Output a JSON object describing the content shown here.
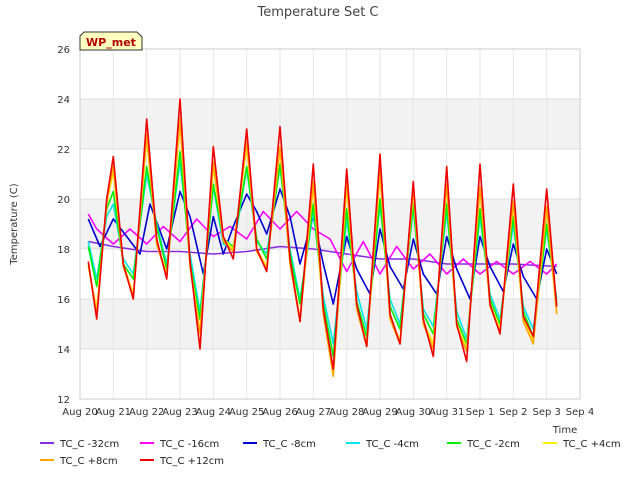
{
  "chart_data": {
    "type": "line",
    "title": "Temperature Set C",
    "xlabel": "Time",
    "ylabel": "Temperature (C)",
    "badge": "WP_met",
    "ylim": [
      12,
      26
    ],
    "yticks": [
      12,
      14,
      16,
      18,
      20,
      22,
      24,
      26
    ],
    "xlim": [
      0,
      15
    ],
    "xtick_labels": [
      "Aug 20",
      "Aug 21",
      "Aug 22",
      "Aug 23",
      "Aug 24",
      "Aug 25",
      "Aug 26",
      "Aug 27",
      "Aug 28",
      "Aug 29",
      "Aug 30",
      "Aug 31",
      "Sep 1",
      "Sep 2",
      "Sep 3",
      "Sep 4"
    ],
    "bands": [
      [
        14,
        16
      ],
      [
        18,
        20
      ],
      [
        22,
        24
      ]
    ],
    "grid": true,
    "legend_position": "bottom",
    "series": [
      {
        "name": "TC_C -32cm",
        "color": "#8a2be2",
        "x": [
          0.25,
          1,
          2,
          3,
          4,
          5,
          6,
          7,
          8,
          9,
          10,
          11,
          12,
          13,
          14.3
        ],
        "y": [
          18.3,
          18.1,
          17.9,
          17.9,
          17.8,
          17.9,
          18.1,
          18.0,
          17.8,
          17.6,
          17.6,
          17.4,
          17.4,
          17.4,
          17.3
        ]
      },
      {
        "name": "TC_C -16cm",
        "color": "#ff00ff",
        "x": [
          0.25,
          0.5,
          1,
          1.5,
          2,
          2.5,
          3,
          3.5,
          4,
          4.5,
          5,
          5.5,
          6,
          6.5,
          7,
          7.5,
          8,
          8.5,
          9,
          9.5,
          10,
          10.5,
          11,
          11.5,
          12,
          12.5,
          13,
          13.5,
          14,
          14.3
        ],
        "y": [
          19.4,
          18.8,
          18.2,
          18.8,
          18.2,
          18.9,
          18.3,
          19.2,
          18.5,
          18.9,
          18.4,
          19.5,
          18.8,
          19.5,
          18.8,
          18.4,
          17.1,
          18.3,
          17.0,
          18.1,
          17.2,
          17.8,
          17.0,
          17.6,
          17.0,
          17.5,
          17.0,
          17.5,
          17.0,
          17.4
        ]
      },
      {
        "name": "TC_C -8cm",
        "color": "#0000cc",
        "x": [
          0.25,
          0.6,
          1,
          1.4,
          1.8,
          2.1,
          2.6,
          3.0,
          3.3,
          3.7,
          4.0,
          4.3,
          4.6,
          5.0,
          5.3,
          5.6,
          6.0,
          6.3,
          6.6,
          7.0,
          7.3,
          7.6,
          8.0,
          8.3,
          8.7,
          9.0,
          9.3,
          9.7,
          10.0,
          10.3,
          10.7,
          11.0,
          11.3,
          11.7,
          12.0,
          12.3,
          12.7,
          13.0,
          13.3,
          13.7,
          14.0,
          14.3
        ],
        "y": [
          19.2,
          18.1,
          19.2,
          18.5,
          17.8,
          19.8,
          18.0,
          20.3,
          19.3,
          17.0,
          19.3,
          17.8,
          18.9,
          20.2,
          19.5,
          18.6,
          20.4,
          19.3,
          17.4,
          19.3,
          17.4,
          15.8,
          18.5,
          17.2,
          16.2,
          18.8,
          17.3,
          16.4,
          18.4,
          17.0,
          16.2,
          18.5,
          17.2,
          16.0,
          18.5,
          17.3,
          16.3,
          18.2,
          16.9,
          16.0,
          18.0,
          17.0
        ]
      },
      {
        "name": "TC_C -4cm",
        "color": "#00e5e5",
        "x": [
          0.25,
          0.5,
          0.8,
          1.0,
          1.3,
          1.6,
          2.0,
          2.3,
          2.6,
          3.0,
          3.3,
          3.6,
          4.0,
          4.3,
          4.6,
          5.0,
          5.3,
          5.6,
          6.0,
          6.3,
          6.6,
          7.0,
          7.3,
          7.6,
          8.0,
          8.3,
          8.6,
          9.0,
          9.3,
          9.6,
          10.0,
          10.3,
          10.6,
          11.0,
          11.3,
          11.6,
          12.0,
          12.3,
          12.6,
          13.0,
          13.3,
          13.6,
          14.0,
          14.3
        ],
        "y": [
          18.3,
          16.8,
          19.3,
          19.8,
          17.6,
          17.0,
          21.0,
          19.0,
          17.4,
          21.5,
          17.8,
          15.5,
          20.5,
          18.2,
          18.0,
          21.2,
          18.3,
          17.8,
          21.3,
          18.0,
          16.0,
          19.5,
          16.1,
          14.2,
          19.2,
          16.3,
          14.8,
          19.8,
          16.0,
          15.0,
          19.6,
          15.6,
          14.9,
          19.5,
          15.5,
          14.4,
          19.3,
          16.2,
          15.2,
          19.0,
          15.7,
          14.8,
          18.8,
          16.0
        ]
      },
      {
        "name": "TC_C -2cm",
        "color": "#00ee00",
        "x": [
          0.25,
          0.5,
          0.8,
          1.0,
          1.3,
          1.6,
          2.0,
          2.3,
          2.6,
          3.0,
          3.3,
          3.6,
          4.0,
          4.3,
          4.6,
          5.0,
          5.3,
          5.6,
          6.0,
          6.3,
          6.6,
          7.0,
          7.3,
          7.6,
          8.0,
          8.3,
          8.6,
          9.0,
          9.3,
          9.6,
          10.0,
          10.3,
          10.6,
          11.0,
          11.3,
          11.6,
          12.0,
          12.3,
          12.6,
          13.0,
          13.3,
          13.6,
          14.0,
          14.3
        ],
        "y": [
          18.1,
          16.5,
          19.6,
          20.3,
          17.4,
          16.8,
          21.3,
          18.9,
          17.2,
          21.9,
          17.5,
          15.2,
          20.6,
          18.4,
          18.1,
          21.3,
          18.4,
          17.6,
          21.4,
          17.8,
          15.8,
          19.8,
          15.8,
          13.7,
          19.6,
          15.9,
          14.5,
          20.0,
          15.7,
          14.8,
          19.8,
          15.4,
          14.6,
          19.8,
          15.2,
          14.2,
          19.6,
          16.0,
          15.0,
          19.3,
          15.5,
          14.5,
          19.0,
          15.8
        ]
      },
      {
        "name": "TC_C +4cm",
        "color": "#ffee00",
        "x": [
          0.25,
          0.5,
          0.8,
          1.0,
          1.3,
          1.6,
          2.0,
          2.3,
          2.6,
          3.0,
          3.3,
          3.6,
          4.0,
          4.3,
          4.6,
          5.0,
          5.3,
          5.6,
          6.0,
          6.3,
          6.6,
          7.0,
          7.3,
          7.6,
          8.0,
          8.3,
          8.6,
          9.0,
          9.3,
          9.6,
          10.0,
          10.3,
          10.6,
          11.0,
          11.3,
          11.6,
          12.0,
          12.3,
          12.6,
          13.0,
          13.3,
          13.6,
          14.0,
          14.3
        ],
        "y": [
          17.3,
          15.6,
          19.8,
          21.1,
          17.4,
          16.2,
          22.4,
          18.3,
          17.0,
          23.0,
          17.4,
          14.7,
          21.3,
          18.4,
          18.0,
          22.1,
          18.0,
          17.3,
          22.0,
          17.5,
          15.2,
          20.5,
          15.5,
          13.0,
          20.5,
          15.7,
          14.2,
          21.0,
          15.3,
          14.3,
          20.3,
          15.1,
          14.2,
          20.5,
          15.0,
          14.0,
          20.4,
          15.8,
          14.8,
          19.8,
          15.2,
          14.3,
          19.6,
          15.5
        ]
      },
      {
        "name": "TC_C +8cm",
        "color": "#ffa500",
        "x": [
          0.25,
          0.5,
          0.8,
          1.0,
          1.3,
          1.6,
          2.0,
          2.3,
          2.6,
          3.0,
          3.3,
          3.6,
          4.0,
          4.3,
          4.6,
          5.0,
          5.3,
          5.6,
          6.0,
          6.3,
          6.6,
          7.0,
          7.3,
          7.6,
          8.0,
          8.3,
          8.6,
          9.0,
          9.3,
          9.6,
          10.0,
          10.3,
          10.6,
          11.0,
          11.3,
          11.6,
          12.0,
          12.3,
          12.6,
          13.0,
          13.3,
          13.6,
          14.0,
          14.3
        ],
        "y": [
          17.4,
          15.4,
          19.9,
          21.3,
          17.3,
          16.1,
          22.6,
          18.2,
          16.9,
          23.2,
          17.3,
          14.6,
          21.5,
          18.3,
          17.9,
          22.3,
          17.9,
          17.2,
          22.1,
          17.4,
          15.1,
          20.7,
          15.4,
          12.9,
          20.7,
          15.6,
          14.1,
          21.2,
          15.2,
          14.2,
          20.4,
          15.0,
          14.0,
          20.6,
          14.9,
          13.9,
          20.5,
          15.7,
          14.7,
          19.9,
          15.1,
          14.2,
          19.7,
          15.4
        ]
      },
      {
        "name": "TC_C +12cm",
        "color": "#ee0000",
        "x": [
          0.25,
          0.5,
          0.8,
          1.0,
          1.3,
          1.6,
          2.0,
          2.3,
          2.6,
          3.0,
          3.3,
          3.6,
          4.0,
          4.3,
          4.6,
          5.0,
          5.3,
          5.6,
          6.0,
          6.3,
          6.6,
          7.0,
          7.3,
          7.6,
          8.0,
          8.3,
          8.6,
          9.0,
          9.3,
          9.6,
          10.0,
          10.3,
          10.6,
          11.0,
          11.3,
          11.6,
          12.0,
          12.3,
          12.6,
          13.0,
          13.3,
          13.6,
          14.0,
          14.3
        ],
        "y": [
          17.5,
          15.2,
          20.0,
          21.7,
          17.4,
          16.0,
          23.2,
          18.4,
          16.8,
          24.0,
          17.5,
          14.0,
          22.1,
          18.5,
          17.6,
          22.8,
          18.0,
          17.1,
          22.9,
          17.6,
          15.1,
          21.4,
          15.6,
          13.2,
          21.2,
          15.8,
          14.1,
          21.8,
          15.4,
          14.2,
          20.7,
          15.2,
          13.7,
          21.3,
          15.0,
          13.5,
          21.4,
          15.8,
          14.6,
          20.6,
          15.3,
          14.5,
          20.4,
          15.7
        ]
      }
    ]
  }
}
